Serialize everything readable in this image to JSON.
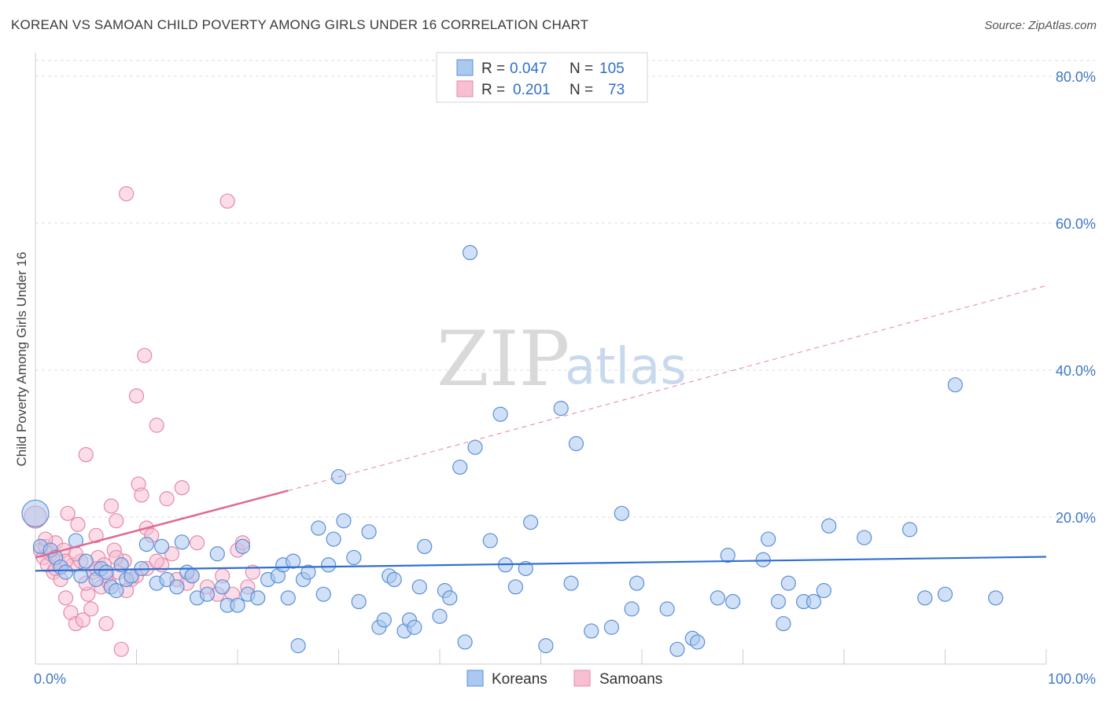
{
  "title": "KOREAN VS SAMOAN CHILD POVERTY AMONG GIRLS UNDER 16 CORRELATION CHART",
  "source": "Source: ZipAtlas.com",
  "watermark": {
    "part1": "ZIP",
    "part2": "atlas"
  },
  "colors": {
    "korean_fill": "#a9c9f0",
    "korean_stroke": "#5b8fd6",
    "korean_line": "#2f6fd0",
    "samoan_fill": "#f8bfd3",
    "samoan_stroke": "#e58aa8",
    "samoan_line": "#e06a92",
    "grid": "#dddddd",
    "axis_text": "#3f78c7"
  },
  "legend": {
    "row1": {
      "r_label": "R =",
      "r_value": "0.047",
      "n_label": "N =",
      "n_value": "105"
    },
    "row2": {
      "r_label": "R =",
      "r_value": "0.201",
      "n_label": "N =",
      "n_value": "73"
    }
  },
  "chart_data": {
    "type": "scatter",
    "title": "KOREAN VS SAMOAN CHILD POVERTY AMONG GIRLS UNDER 16 CORRELATION CHART",
    "xlabel": "",
    "ylabel": "Child Poverty Among Girls Under 16",
    "xlim": [
      0,
      100
    ],
    "ylim": [
      0,
      80
    ],
    "x_tick_labels": [
      "0.0%",
      "100.0%"
    ],
    "y_ticks": [
      20,
      40,
      60,
      80
    ],
    "y_tick_labels": [
      "20.0%",
      "40.0%",
      "60.0%",
      "80.0%"
    ],
    "grid": true,
    "legend_position": "top-center",
    "series": [
      {
        "name": "Koreans",
        "color": "#a9c9f0",
        "trend": {
          "x0": 0,
          "y0": 12.7,
          "x1": 100,
          "y1": 14.6,
          "dashed_after": 100
        },
        "points": [
          [
            0,
            20.5
          ],
          [
            0.5,
            16.0
          ],
          [
            1.5,
            15.5
          ],
          [
            2.0,
            14.5
          ],
          [
            2.5,
            13.2
          ],
          [
            3.0,
            12.5
          ],
          [
            4.0,
            16.8
          ],
          [
            4.5,
            12.0
          ],
          [
            5.0,
            14.0
          ],
          [
            6.0,
            11.5
          ],
          [
            6.5,
            13.0
          ],
          [
            7.0,
            12.5
          ],
          [
            7.5,
            10.5
          ],
          [
            8.0,
            10.0
          ],
          [
            8.5,
            13.5
          ],
          [
            9.0,
            11.5
          ],
          [
            9.5,
            12.0
          ],
          [
            10.5,
            13.0
          ],
          [
            11.0,
            16.3
          ],
          [
            12.0,
            11.0
          ],
          [
            12.5,
            16.0
          ],
          [
            13.0,
            11.5
          ],
          [
            14.0,
            10.5
          ],
          [
            14.5,
            16.6
          ],
          [
            15.0,
            12.5
          ],
          [
            15.5,
            12.0
          ],
          [
            16.0,
            9.0
          ],
          [
            17.0,
            9.5
          ],
          [
            18.0,
            15.0
          ],
          [
            18.5,
            10.5
          ],
          [
            19.0,
            8.0
          ],
          [
            20.0,
            8.0
          ],
          [
            20.5,
            16.0
          ],
          [
            21.0,
            9.5
          ],
          [
            22.0,
            9.0
          ],
          [
            23.0,
            11.5
          ],
          [
            24.0,
            12.0
          ],
          [
            24.5,
            13.5
          ],
          [
            25.0,
            9.0
          ],
          [
            25.5,
            14.0
          ],
          [
            26.0,
            2.5
          ],
          [
            26.5,
            11.5
          ],
          [
            27.0,
            12.5
          ],
          [
            28.0,
            18.5
          ],
          [
            28.5,
            9.5
          ],
          [
            29.0,
            13.5
          ],
          [
            29.5,
            17.0
          ],
          [
            30.0,
            25.5
          ],
          [
            30.5,
            19.5
          ],
          [
            31.5,
            14.5
          ],
          [
            32.0,
            8.5
          ],
          [
            33.0,
            18.0
          ],
          [
            34.0,
            5.0
          ],
          [
            34.5,
            6.0
          ],
          [
            35.0,
            12.0
          ],
          [
            35.5,
            11.5
          ],
          [
            36.5,
            4.5
          ],
          [
            37.0,
            6.0
          ],
          [
            37.5,
            5.0
          ],
          [
            38.0,
            10.5
          ],
          [
            38.5,
            16.0
          ],
          [
            40.0,
            6.5
          ],
          [
            40.5,
            10.0
          ],
          [
            41.0,
            9.0
          ],
          [
            42.0,
            26.8
          ],
          [
            42.5,
            3.0
          ],
          [
            43.0,
            56.0
          ],
          [
            43.5,
            29.5
          ],
          [
            45.0,
            16.8
          ],
          [
            46.0,
            34.0
          ],
          [
            46.5,
            13.5
          ],
          [
            47.5,
            10.5
          ],
          [
            48.5,
            13.0
          ],
          [
            49.0,
            19.3
          ],
          [
            50.5,
            2.5
          ],
          [
            52.0,
            34.8
          ],
          [
            53.0,
            11.0
          ],
          [
            53.5,
            30.0
          ],
          [
            55.0,
            4.5
          ],
          [
            57.0,
            5.0
          ],
          [
            58.0,
            20.5
          ],
          [
            59.0,
            7.5
          ],
          [
            59.5,
            11.0
          ],
          [
            62.5,
            7.5
          ],
          [
            63.5,
            2.0
          ],
          [
            65.0,
            3.5
          ],
          [
            65.5,
            3.0
          ],
          [
            67.5,
            9.0
          ],
          [
            68.5,
            14.8
          ],
          [
            69.0,
            8.5
          ],
          [
            72.0,
            14.2
          ],
          [
            72.5,
            17.0
          ],
          [
            73.5,
            8.5
          ],
          [
            74.0,
            5.5
          ],
          [
            74.5,
            11.0
          ],
          [
            76.0,
            8.5
          ],
          [
            77.0,
            8.5
          ],
          [
            78.0,
            10.0
          ],
          [
            78.5,
            18.8
          ],
          [
            82.0,
            17.2
          ],
          [
            86.5,
            18.3
          ],
          [
            88.0,
            9.0
          ],
          [
            90.0,
            9.5
          ],
          [
            91.0,
            38.0
          ],
          [
            95.0,
            9.0
          ]
        ]
      },
      {
        "name": "Samoans",
        "color": "#f8bfd3",
        "trend": {
          "x0": 0,
          "y0": 14.5,
          "x1": 25,
          "y1": 23.6,
          "dash_x1": 100,
          "dash_y1": 51.5
        },
        "points": [
          [
            0,
            20.0
          ],
          [
            0.5,
            15.5
          ],
          [
            0.8,
            14.5
          ],
          [
            1.0,
            16.0
          ],
          [
            1.2,
            13.5
          ],
          [
            1.5,
            15.0
          ],
          [
            1.8,
            12.5
          ],
          [
            2.0,
            16.5
          ],
          [
            2.2,
            14.0
          ],
          [
            2.5,
            11.5
          ],
          [
            2.8,
            15.5
          ],
          [
            3.0,
            9.0
          ],
          [
            3.2,
            20.5
          ],
          [
            3.5,
            7.0
          ],
          [
            3.7,
            13.5
          ],
          [
            4.0,
            5.5
          ],
          [
            4.2,
            19.0
          ],
          [
            4.5,
            14.0
          ],
          [
            4.7,
            6.0
          ],
          [
            5.0,
            28.5
          ],
          [
            5.2,
            9.5
          ],
          [
            5.5,
            7.5
          ],
          [
            5.7,
            12.5
          ],
          [
            6.0,
            17.5
          ],
          [
            6.2,
            14.5
          ],
          [
            6.5,
            10.5
          ],
          [
            6.8,
            13.5
          ],
          [
            7.0,
            5.5
          ],
          [
            7.3,
            11.0
          ],
          [
            7.5,
            21.5
          ],
          [
            7.8,
            15.5
          ],
          [
            8.0,
            19.5
          ],
          [
            8.2,
            12.5
          ],
          [
            8.5,
            2.0
          ],
          [
            8.8,
            14.0
          ],
          [
            9.0,
            64.0
          ],
          [
            9.5,
            11.5
          ],
          [
            10.0,
            36.5
          ],
          [
            10.2,
            24.5
          ],
          [
            10.5,
            23.0
          ],
          [
            10.8,
            42.0
          ],
          [
            11.0,
            18.5
          ],
          [
            11.5,
            17.5
          ],
          [
            12.0,
            32.5
          ],
          [
            12.5,
            13.5
          ],
          [
            13.0,
            22.5
          ],
          [
            13.5,
            15.0
          ],
          [
            14.0,
            11.5
          ],
          [
            14.5,
            24.0
          ],
          [
            15.0,
            11.0
          ],
          [
            15.5,
            12.0
          ],
          [
            16.0,
            16.5
          ],
          [
            17.0,
            10.5
          ],
          [
            18.0,
            9.5
          ],
          [
            18.5,
            12.0
          ],
          [
            19.0,
            63.0
          ],
          [
            19.5,
            9.5
          ],
          [
            20.0,
            15.5
          ],
          [
            20.5,
            16.5
          ],
          [
            21.0,
            10.5
          ],
          [
            21.5,
            12.5
          ],
          [
            1.0,
            17.0
          ],
          [
            2.0,
            13.0
          ],
          [
            3.0,
            14.0
          ],
          [
            4.0,
            15.0
          ],
          [
            5.0,
            11.0
          ],
          [
            6.0,
            13.0
          ],
          [
            7.0,
            12.0
          ],
          [
            8.0,
            14.5
          ],
          [
            9.0,
            10.0
          ],
          [
            10.0,
            12.0
          ],
          [
            11.0,
            13.0
          ],
          [
            12.0,
            14.0
          ]
        ]
      }
    ]
  },
  "bottom_legend": {
    "koreans": "Koreans",
    "samoans": "Samoans"
  }
}
